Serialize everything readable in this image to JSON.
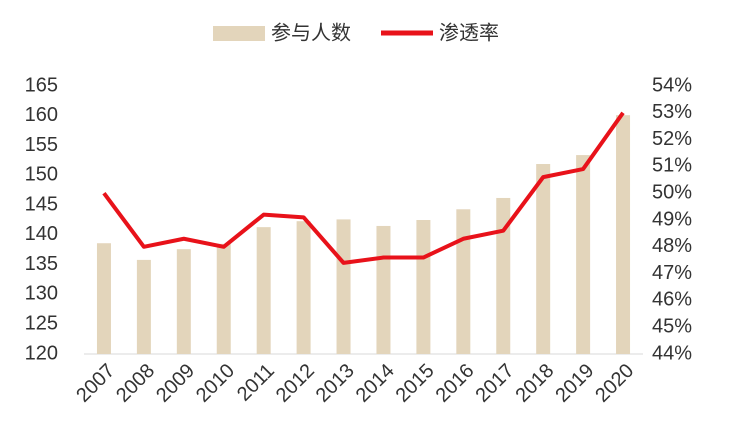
{
  "chart_data": {
    "type": "bar-line",
    "categories": [
      "2007",
      "2008",
      "2009",
      "2010",
      "2011",
      "2012",
      "2013",
      "2014",
      "2015",
      "2016",
      "2017",
      "2018",
      "2019",
      "2020"
    ],
    "series": [
      {
        "name": "参与人数",
        "type": "bar",
        "color": "#e3d5bb",
        "values": [
          138.6,
          135.8,
          137.6,
          138.5,
          141.3,
          142.3,
          142.6,
          141.5,
          142.5,
          144.3,
          146.2,
          151.9,
          153.4,
          160.1
        ]
      },
      {
        "name": "渗透率",
        "type": "line",
        "axis": "y2",
        "color": "#e8121a",
        "values": [
          50.0,
          48.0,
          48.3,
          48.0,
          49.2,
          49.1,
          47.4,
          47.6,
          47.6,
          48.3,
          48.6,
          50.6,
          50.9,
          53.0
        ]
      }
    ],
    "ylim": [
      120,
      165
    ],
    "yticks": [
      120,
      125,
      130,
      135,
      140,
      145,
      150,
      155,
      160,
      165
    ],
    "y2lim": [
      44,
      54
    ],
    "y2ticks": [
      {
        "value": 44,
        "label": "44%"
      },
      {
        "value": 45,
        "label": "45%"
      },
      {
        "value": 46,
        "label": "46%"
      },
      {
        "value": 47,
        "label": "47%"
      },
      {
        "value": 48,
        "label": "48%"
      },
      {
        "value": 49,
        "label": "49%"
      },
      {
        "value": 50,
        "label": "50%"
      },
      {
        "value": 51,
        "label": "51%"
      },
      {
        "value": 52,
        "label": "52%"
      },
      {
        "value": 53,
        "label": "53%"
      },
      {
        "value": 54,
        "label": "54%"
      }
    ]
  }
}
